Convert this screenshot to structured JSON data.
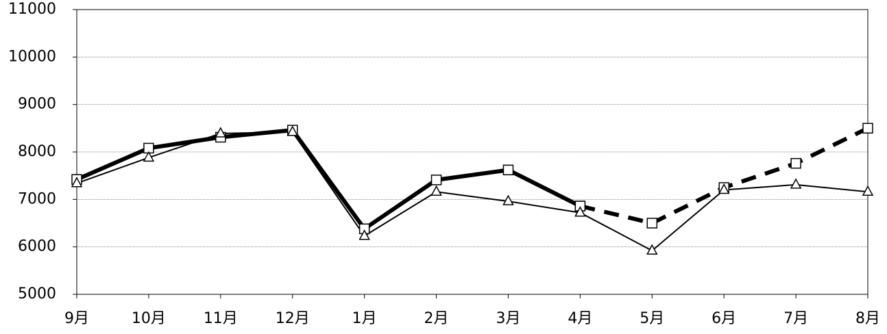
{
  "chart_data": {
    "type": "line",
    "categories": [
      "9月",
      "10月",
      "11月",
      "12月",
      "1月",
      "2月",
      "3月",
      "4月",
      "5月",
      "6月",
      "7月",
      "8月"
    ],
    "series": [
      {
        "color": "#000000",
        "width": 6,
        "dash": false,
        "marker": "square",
        "values": [
          7420,
          8080,
          8310,
          8460,
          6380,
          7410,
          7620,
          6860,
          null,
          null,
          null,
          null
        ]
      },
      {
        "color": "#000000",
        "width": 6,
        "dash": true,
        "marker": "square",
        "values": [
          null,
          null,
          null,
          null,
          null,
          null,
          null,
          6860,
          6500,
          7250,
          7760,
          8500
        ]
      },
      {
        "color": "#000000",
        "width": 2,
        "dash": false,
        "marker": "triangle",
        "values": [
          7340,
          7880,
          8390,
          8420,
          6230,
          7160,
          6960,
          6720,
          5920,
          7200,
          7310,
          7160
        ]
      }
    ],
    "ylim": [
      5000,
      11000
    ],
    "yticks": [
      5000,
      6000,
      7000,
      8000,
      9000,
      10000,
      11000
    ],
    "grid": true
  }
}
